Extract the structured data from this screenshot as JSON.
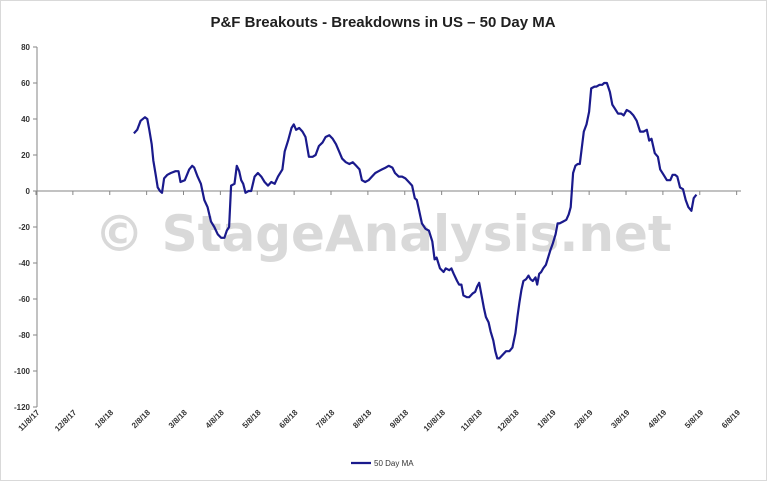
{
  "chart_data": {
    "type": "line",
    "title": "P&F Breakouts - Breakdowns in US – 50 Day MA",
    "xlabel": "",
    "ylabel": "",
    "ylim": [
      -120,
      80
    ],
    "yticks": [
      80,
      60,
      40,
      20,
      0,
      -20,
      -40,
      -60,
      -80,
      -100,
      -120
    ],
    "xlim": [
      0,
      210
    ],
    "x_tick_labels": [
      "11/8/17",
      "12/8/17",
      "1/8/18",
      "2/8/18",
      "3/8/18",
      "4/8/18",
      "5/8/18",
      "6/8/18",
      "7/8/18",
      "8/8/18",
      "9/8/18",
      "10/8/18",
      "11/8/18",
      "12/8/18",
      "1/8/19",
      "2/8/19",
      "3/8/19",
      "4/8/19",
      "5/8/19",
      "6/8/19"
    ],
    "x_tick_positions": [
      0,
      11,
      22,
      33,
      44,
      55,
      66,
      77,
      88,
      99,
      110,
      121,
      132,
      143,
      154,
      165,
      176,
      187,
      198,
      209
    ],
    "legend": {
      "position": "bottom",
      "entries": [
        "50 Day MA"
      ]
    },
    "watermark": "© StageAnalysis.net",
    "series": [
      {
        "name": "50 Day MA",
        "color": "#1a1a8c",
        "points": [
          [
            29.2,
            32
          ],
          [
            30.2,
            34
          ],
          [
            31.2,
            39
          ],
          [
            32.5,
            41
          ],
          [
            33.2,
            40
          ],
          [
            33.8,
            34
          ],
          [
            34.5,
            26
          ],
          [
            35.0,
            17
          ],
          [
            35.7,
            9
          ],
          [
            36.3,
            2
          ],
          [
            37.0,
            0
          ],
          [
            37.6,
            -1
          ],
          [
            38.2,
            7
          ],
          [
            39.2,
            9
          ],
          [
            40.2,
            10
          ],
          [
            41.6,
            11
          ],
          [
            42.5,
            11
          ],
          [
            43.1,
            5
          ],
          [
            44.4,
            6
          ],
          [
            45.7,
            12
          ],
          [
            46.6,
            14
          ],
          [
            47.2,
            13
          ],
          [
            48.2,
            8
          ],
          [
            49.2,
            4
          ],
          [
            50.2,
            -5
          ],
          [
            51.2,
            -9
          ],
          [
            52.2,
            -17
          ],
          [
            53.2,
            -20
          ],
          [
            54.2,
            -24
          ],
          [
            55.2,
            -26
          ],
          [
            56.2,
            -26
          ],
          [
            56.9,
            -22
          ],
          [
            57.6,
            -20
          ],
          [
            58.2,
            3
          ],
          [
            59.2,
            4
          ],
          [
            59.9,
            14
          ],
          [
            60.6,
            11
          ],
          [
            61.2,
            6
          ],
          [
            61.8,
            4
          ],
          [
            62.5,
            -1
          ],
          [
            63.4,
            0
          ],
          [
            64.2,
            0
          ],
          [
            65.2,
            8
          ],
          [
            66.2,
            10
          ],
          [
            67.2,
            8
          ],
          [
            68.2,
            5
          ],
          [
            69.2,
            3
          ],
          [
            70.2,
            5
          ],
          [
            71.2,
            4
          ],
          [
            72.2,
            8
          ],
          [
            73.5,
            12
          ],
          [
            74.2,
            22
          ],
          [
            75.2,
            28
          ],
          [
            76.2,
            35
          ],
          [
            76.9,
            37
          ],
          [
            77.6,
            34
          ],
          [
            78.5,
            35
          ],
          [
            79.5,
            33
          ],
          [
            80.4,
            30
          ],
          [
            81.4,
            19
          ],
          [
            82.5,
            19
          ],
          [
            83.4,
            20
          ],
          [
            84.4,
            25
          ],
          [
            85.5,
            27
          ],
          [
            86.4,
            30
          ],
          [
            87.5,
            31
          ],
          [
            88.5,
            29
          ],
          [
            89.5,
            26
          ],
          [
            90.4,
            22
          ],
          [
            91.3,
            18
          ],
          [
            92.4,
            16
          ],
          [
            93.5,
            15
          ],
          [
            94.5,
            16
          ],
          [
            95.5,
            14
          ],
          [
            96.5,
            12
          ],
          [
            97.2,
            6
          ],
          [
            98.2,
            5
          ],
          [
            99.2,
            6
          ],
          [
            100.2,
            8
          ],
          [
            101.2,
            10
          ],
          [
            102.2,
            11
          ],
          [
            103.2,
            12
          ],
          [
            104.3,
            13
          ],
          [
            105.2,
            14
          ],
          [
            106.3,
            13
          ],
          [
            107.1,
            10
          ],
          [
            108.2,
            8
          ],
          [
            109.2,
            8
          ],
          [
            110.2,
            7
          ],
          [
            111.2,
            5
          ],
          [
            112.2,
            3
          ],
          [
            113.0,
            -4
          ],
          [
            113.6,
            -5
          ],
          [
            114.2,
            -10
          ],
          [
            115.1,
            -18
          ],
          [
            116.2,
            -21
          ],
          [
            117.2,
            -22
          ],
          [
            118.2,
            -28
          ],
          [
            118.9,
            -38
          ],
          [
            119.5,
            -37
          ],
          [
            120.5,
            -43
          ],
          [
            121.6,
            -45
          ],
          [
            122.2,
            -43
          ],
          [
            123.3,
            -44
          ],
          [
            123.9,
            -43
          ],
          [
            124.6,
            -46
          ],
          [
            125.6,
            -50
          ],
          [
            126.2,
            -52
          ],
          [
            126.9,
            -52
          ],
          [
            127.5,
            -58
          ],
          [
            128.5,
            -59
          ],
          [
            129.2,
            -59
          ],
          [
            130.2,
            -57
          ],
          [
            131.0,
            -56
          ],
          [
            131.6,
            -53
          ],
          [
            132.2,
            -51
          ],
          [
            133.0,
            -59
          ],
          [
            133.6,
            -65
          ],
          [
            134.2,
            -70
          ],
          [
            135.0,
            -73
          ],
          [
            135.6,
            -78
          ],
          [
            136.4,
            -83
          ],
          [
            137.0,
            -89
          ],
          [
            137.6,
            -93
          ],
          [
            138.2,
            -93
          ],
          [
            139.2,
            -91
          ],
          [
            140.2,
            -89
          ],
          [
            141.2,
            -89
          ],
          [
            142.1,
            -87
          ],
          [
            143.0,
            -79
          ],
          [
            143.6,
            -70
          ],
          [
            144.2,
            -62
          ],
          [
            144.8,
            -55
          ],
          [
            145.4,
            -50
          ],
          [
            146.2,
            -49
          ],
          [
            146.9,
            -47
          ],
          [
            147.5,
            -49
          ],
          [
            148.2,
            -50
          ],
          [
            149.0,
            -48
          ],
          [
            149.5,
            -52
          ],
          [
            150.1,
            -46
          ],
          [
            150.7,
            -45
          ],
          [
            151.3,
            -43
          ],
          [
            152.1,
            -41
          ],
          [
            153.4,
            -33
          ],
          [
            154.2,
            -29
          ],
          [
            155.0,
            -24
          ],
          [
            155.6,
            -18
          ],
          [
            156.2,
            -18
          ],
          [
            157.2,
            -17
          ],
          [
            158.2,
            -16
          ],
          [
            158.9,
            -13
          ],
          [
            159.5,
            -9
          ],
          [
            160.2,
            10
          ],
          [
            160.9,
            14
          ],
          [
            161.6,
            15
          ],
          [
            162.2,
            15
          ],
          [
            162.8,
            24
          ],
          [
            163.4,
            33
          ],
          [
            164.2,
            37
          ],
          [
            165.0,
            44
          ],
          [
            165.6,
            57
          ],
          [
            166.6,
            58
          ],
          [
            167.2,
            58
          ],
          [
            168.1,
            59
          ],
          [
            168.9,
            59
          ],
          [
            169.5,
            60
          ],
          [
            170.3,
            60
          ],
          [
            171.2,
            55
          ],
          [
            171.9,
            48
          ],
          [
            172.6,
            46
          ],
          [
            173.6,
            43
          ],
          [
            174.6,
            43
          ],
          [
            175.3,
            42
          ],
          [
            176.2,
            45
          ],
          [
            177.2,
            44
          ],
          [
            178.2,
            42
          ],
          [
            179.2,
            39
          ],
          [
            180.2,
            33
          ],
          [
            181.2,
            33
          ],
          [
            182.2,
            34
          ],
          [
            182.9,
            28
          ],
          [
            183.6,
            29
          ],
          [
            184.6,
            21
          ],
          [
            185.5,
            19
          ],
          [
            186.2,
            12
          ],
          [
            187.2,
            9
          ],
          [
            188.2,
            6
          ],
          [
            189.2,
            6
          ],
          [
            189.9,
            9
          ],
          [
            190.6,
            9
          ],
          [
            191.3,
            8
          ],
          [
            192.1,
            2
          ],
          [
            193.0,
            1
          ],
          [
            193.8,
            -5
          ],
          [
            194.6,
            -9
          ],
          [
            195.5,
            -11
          ],
          [
            196.2,
            -4
          ],
          [
            197.0,
            -2
          ]
        ]
      }
    ]
  }
}
